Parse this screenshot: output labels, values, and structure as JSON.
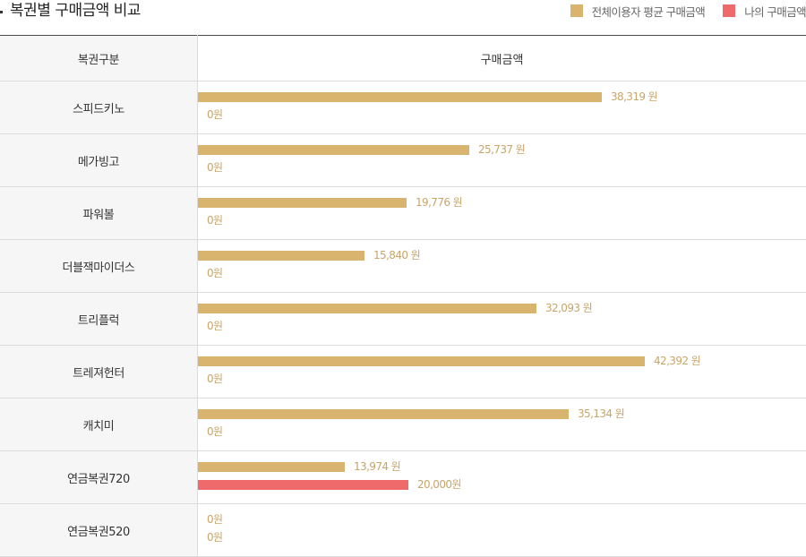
{
  "title": "복권별 구매금액 비교",
  "legend": [
    {
      "label": "전체이용자 평균 구매금액",
      "color": "#d8b46f"
    },
    {
      "label": "나의 구매금액",
      "color": "#ef6b6b"
    }
  ],
  "table": {
    "col_name_header": "복권구분",
    "col_bar_header": "구매금액"
  },
  "chart_data": {
    "type": "bar",
    "orientation": "horizontal",
    "title": "복권별 구매금액 비교",
    "categories": [
      "스피드키노",
      "메가빙고",
      "파워볼",
      "더블잭마이더스",
      "트리플럭",
      "트레져헌터",
      "캐치미",
      "연금복권720",
      "연금복권520"
    ],
    "series": [
      {
        "name": "전체이용자 평균 구매금액",
        "color": "#d8b46f",
        "values": [
          38319,
          25737,
          19776,
          15840,
          32093,
          42392,
          35134,
          13974,
          0
        ],
        "labels": [
          "38,319 원",
          "25,737 원",
          "19,776 원",
          "15,840 원",
          "32,093 원",
          "42,392 원",
          "35,134 원",
          "13,974 원",
          "0원"
        ]
      },
      {
        "name": "나의 구매금액",
        "color": "#ef6b6b",
        "values": [
          0,
          0,
          0,
          0,
          0,
          0,
          0,
          20000,
          0
        ],
        "labels": [
          "0원",
          "0원",
          "0원",
          "0원",
          "0원",
          "0원",
          "0원",
          "20,000원",
          "0원"
        ]
      }
    ],
    "xlim": [
      0,
      45000
    ]
  }
}
